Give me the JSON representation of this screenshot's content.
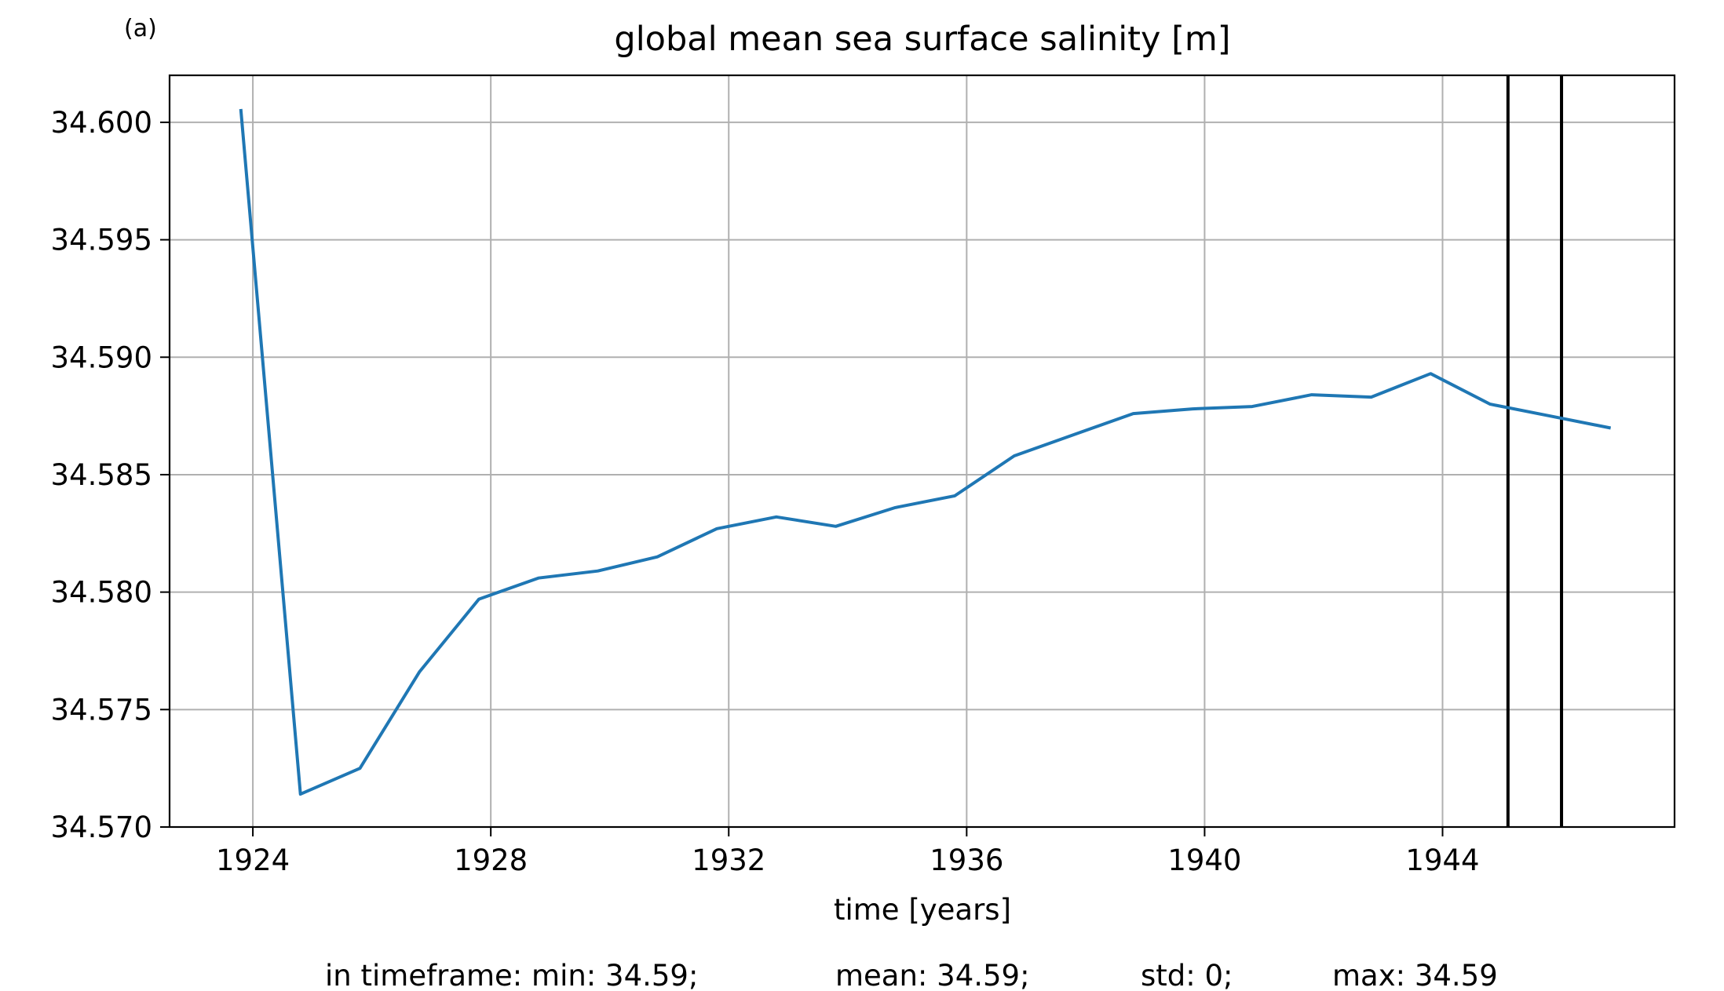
{
  "panel_label": "(a)",
  "chart_data": {
    "type": "line",
    "title": "global mean sea surface salinity [m]",
    "xlabel": "time [years]",
    "ylabel": "",
    "xlim": [
      1922.6,
      1947.9
    ],
    "ylim": [
      34.57,
      34.602
    ],
    "x_ticks": [
      1924,
      1928,
      1932,
      1936,
      1940,
      1944
    ],
    "y_ticks": [
      34.57,
      34.575,
      34.58,
      34.585,
      34.59,
      34.595,
      34.6
    ],
    "y_tick_labels": [
      "34.570",
      "34.575",
      "34.580",
      "34.585",
      "34.590",
      "34.595",
      "34.600"
    ],
    "grid": true,
    "series": [
      {
        "color": "#1f77b4",
        "x": [
          1923.8,
          1924.8,
          1925.8,
          1926.8,
          1927.8,
          1928.8,
          1929.8,
          1930.8,
          1931.8,
          1932.8,
          1933.8,
          1934.8,
          1935.8,
          1936.8,
          1937.8,
          1938.8,
          1939.8,
          1940.8,
          1941.8,
          1942.8,
          1943.8,
          1944.8,
          1945.8,
          1946.8
        ],
        "y": [
          34.6005,
          34.5714,
          34.5725,
          34.5766,
          34.5797,
          34.5806,
          34.5809,
          34.5815,
          34.5827,
          34.5832,
          34.5828,
          34.5836,
          34.5841,
          34.5858,
          34.5867,
          34.5876,
          34.5878,
          34.5879,
          34.5884,
          34.5883,
          34.5893,
          34.588,
          34.5875,
          34.587
        ]
      }
    ],
    "vertical_lines": [
      {
        "x": 1945.1,
        "color": "#000000"
      },
      {
        "x": 1946.0,
        "color": "#000000"
      }
    ]
  },
  "stats": {
    "min": "in timeframe: min: 34.59;",
    "mean": "mean: 34.59;",
    "std": "std: 0;",
    "max": "max: 34.59"
  }
}
